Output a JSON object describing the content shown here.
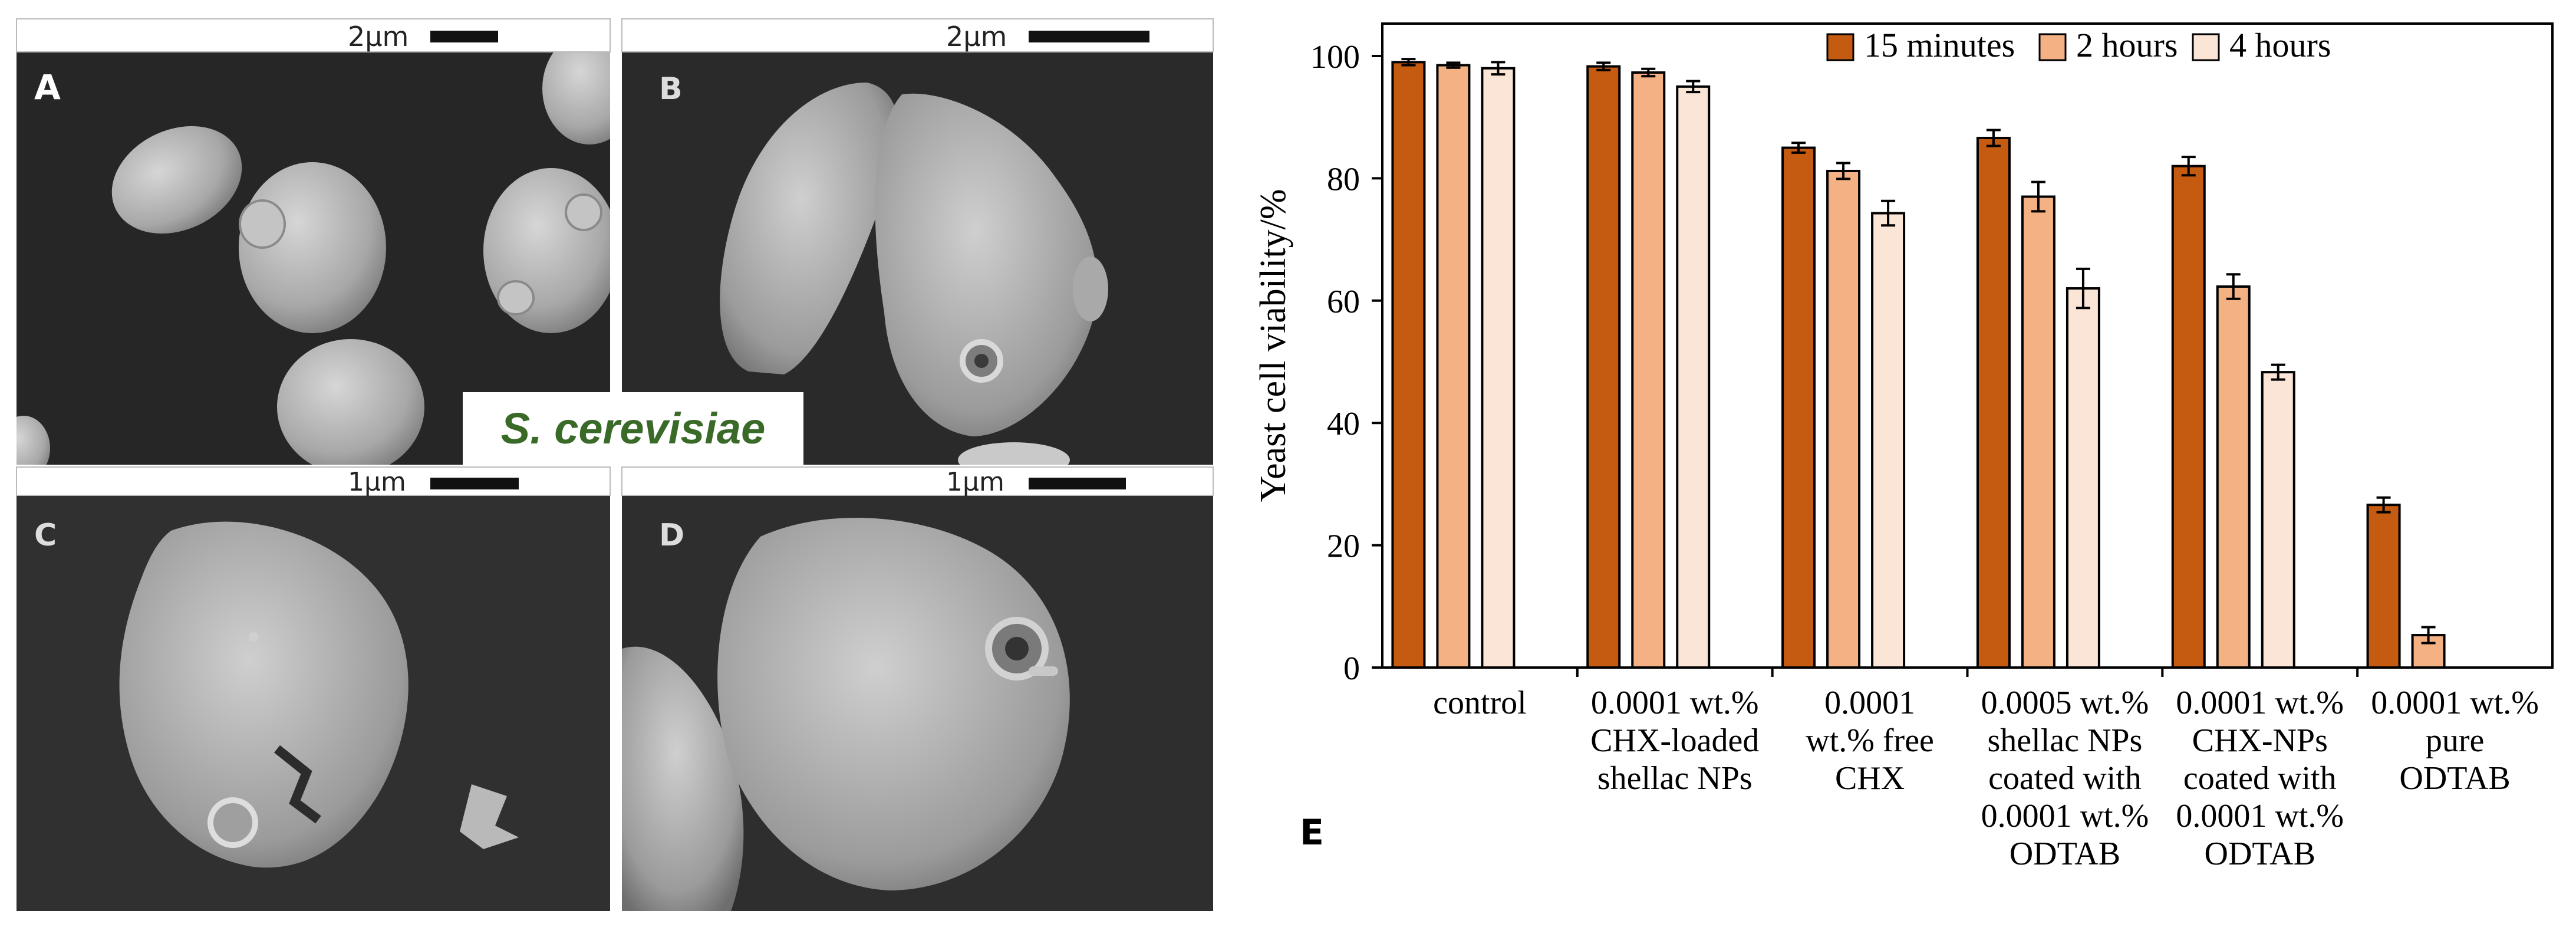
{
  "figure": {
    "species_label": "S. cerevisiae",
    "panel_e_letter": "E",
    "colors": {
      "species_text": "#3a6a28",
      "sem_background": "#2a2a2a",
      "cell_fill": "#b9b9b9",
      "label_bar_fill": "#ffffff"
    },
    "panels": [
      {
        "letter": "A",
        "scale_text": "2µm",
        "content": "intact oval yeast cells"
      },
      {
        "letter": "B",
        "scale_text": "2µm",
        "content": "deformed cells with a pore"
      },
      {
        "letter": "C",
        "scale_text": "1µm",
        "content": "collapsed cell with cracked wall"
      },
      {
        "letter": "D",
        "scale_text": "1µm",
        "content": "shrivelled cell with a pore"
      }
    ]
  },
  "chart_data": {
    "type": "bar",
    "ylabel": "Yeast cell viability/%",
    "xlabel": "",
    "ylim": [
      0,
      100
    ],
    "yticks": [
      0,
      20,
      40,
      60,
      80,
      100
    ],
    "grid": false,
    "legend_position": "top-right",
    "categories": [
      [
        "control"
      ],
      [
        "0.0001 wt.%",
        "CHX-loaded",
        "shellac NPs"
      ],
      [
        "0.0001",
        "wt.% free",
        "CHX"
      ],
      [
        "0.0005 wt.%",
        "shellac NPs",
        "coated with",
        "0.0001 wt.%",
        "ODTAB"
      ],
      [
        "0.0001 wt.%",
        "CHX-NPs",
        "coated with",
        "0.0001 wt.%",
        "ODTAB"
      ],
      [
        "0.0001 wt.%",
        "pure",
        "ODTAB"
      ]
    ],
    "series": [
      {
        "name": "15 minutes",
        "color": "#c55a11",
        "values": [
          99,
          98.3,
          85,
          86.6,
          82,
          26.6
        ],
        "errors": [
          0.5,
          0.6,
          0.8,
          1.3,
          1.5,
          1.2
        ]
      },
      {
        "name": "2 hours",
        "color": "#f4b183",
        "values": [
          98.5,
          97.3,
          81.2,
          77,
          62.3,
          5.3
        ],
        "errors": [
          0.4,
          0.6,
          1.3,
          2.4,
          2,
          1.3
        ]
      },
      {
        "name": "4 hours",
        "color": "#fbe5d6",
        "values": [
          98,
          95,
          74.3,
          62,
          48.3,
          null
        ],
        "errors": [
          1,
          0.9,
          2,
          3.2,
          1.2,
          null
        ]
      }
    ]
  }
}
